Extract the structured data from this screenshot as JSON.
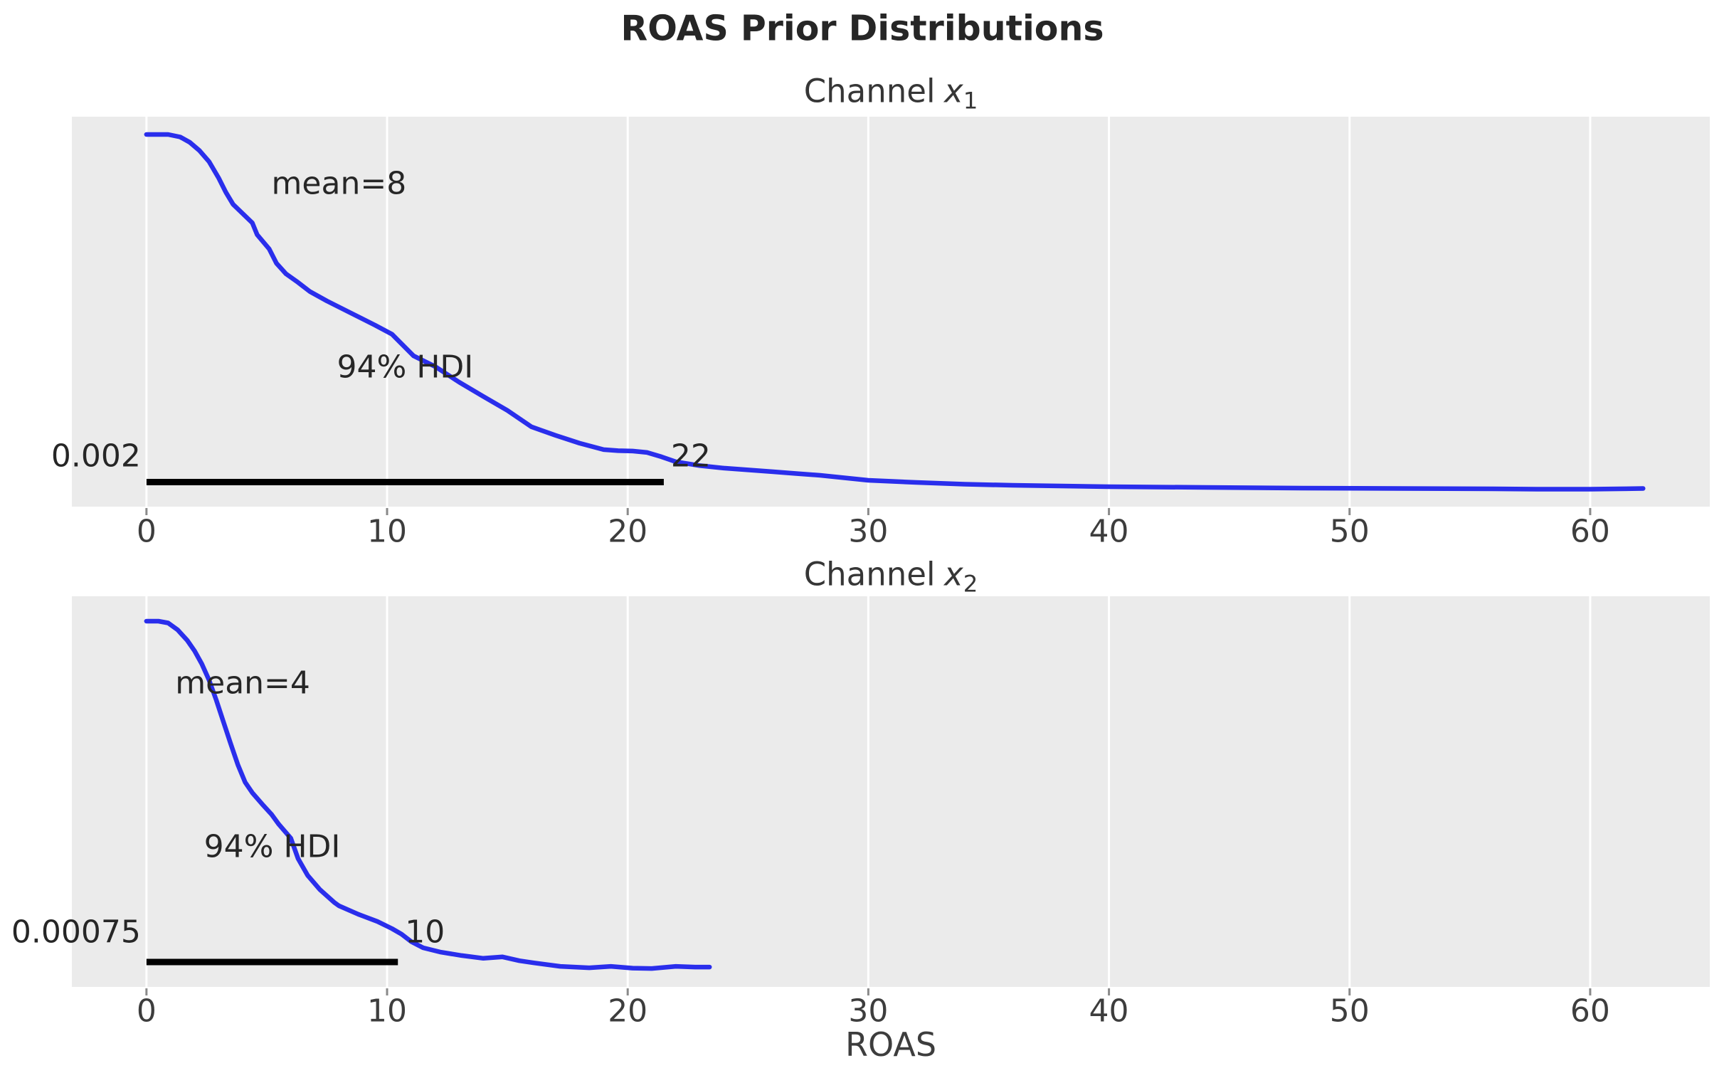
{
  "title": "ROAS Prior Distributions",
  "xlabel": "ROAS",
  "colors": {
    "figure_background": "#ffffff",
    "axes_background": "#ebebeb",
    "gridline": "#ffffff",
    "curve": "#2a2eec",
    "hdi_bar": "#000000",
    "title_text": "#262626",
    "axes_title_text": "#363636",
    "annotation_text": "#262626",
    "tick_text": "#3d3d3d",
    "tick_mark": "#8a8a8a"
  },
  "chart_data": {
    "type": "line",
    "kind": "kde-density-prior",
    "grid": "vertical-white-on-gray",
    "x_ticks": [
      0,
      10,
      20,
      30,
      40,
      50,
      60
    ],
    "x_axis_range": [
      -3.1,
      64.97
    ],
    "subplots": [
      {
        "title_word": "Channel",
        "var_letter": "x",
        "var_sub": "1",
        "mean_label": "mean=8",
        "mean": 8,
        "hdi_label": "94% HDI",
        "hdi_lower": 0.002,
        "hdi_upper": 21.5,
        "hdi_lower_label": "0.002",
        "hdi_upper_label": "22",
        "curve_x_end": 62.2,
        "curve": [
          [
            0,
            1.0
          ],
          [
            0.9,
            1.0
          ],
          [
            1.4,
            0.993
          ],
          [
            1.8,
            0.978
          ],
          [
            2.2,
            0.955
          ],
          [
            2.6,
            0.924
          ],
          [
            3.0,
            0.878
          ],
          [
            3.3,
            0.838
          ],
          [
            3.6,
            0.804
          ],
          [
            4.0,
            0.778
          ],
          [
            4.4,
            0.752
          ],
          [
            4.6,
            0.719
          ],
          [
            5.1,
            0.679
          ],
          [
            5.4,
            0.639
          ],
          [
            5.8,
            0.609
          ],
          [
            6.3,
            0.585
          ],
          [
            6.8,
            0.559
          ],
          [
            7.5,
            0.533
          ],
          [
            8.5,
            0.499
          ],
          [
            9.5,
            0.465
          ],
          [
            10.2,
            0.44
          ],
          [
            11.1,
            0.379
          ],
          [
            12,
            0.349
          ],
          [
            13,
            0.305
          ],
          [
            14,
            0.265
          ],
          [
            15,
            0.226
          ],
          [
            16,
            0.18
          ],
          [
            17,
            0.156
          ],
          [
            18,
            0.134
          ],
          [
            19,
            0.116
          ],
          [
            19.6,
            0.113
          ],
          [
            20.2,
            0.112
          ],
          [
            20.8,
            0.108
          ],
          [
            21.4,
            0.096
          ],
          [
            22,
            0.082
          ],
          [
            23,
            0.071
          ],
          [
            24,
            0.064
          ],
          [
            25,
            0.059
          ],
          [
            26,
            0.054
          ],
          [
            27,
            0.049
          ],
          [
            28,
            0.044
          ],
          [
            29,
            0.037
          ],
          [
            30,
            0.03
          ],
          [
            31,
            0.027
          ],
          [
            32,
            0.024
          ],
          [
            34,
            0.019
          ],
          [
            36,
            0.016
          ],
          [
            38,
            0.014
          ],
          [
            40,
            0.012
          ],
          [
            44,
            0.01
          ],
          [
            48,
            0.008
          ],
          [
            52,
            0.007
          ],
          [
            56,
            0.006
          ],
          [
            58,
            0.005
          ],
          [
            60,
            0.005
          ],
          [
            61.2,
            0.006
          ],
          [
            62.2,
            0.007
          ]
        ]
      },
      {
        "title_word": "Channel",
        "var_letter": "x",
        "var_sub": "2",
        "mean_label": "mean=4",
        "mean": 4,
        "hdi_label": "94% HDI",
        "hdi_lower": 0.00075,
        "hdi_upper": 10.45,
        "hdi_lower_label": "0.00075",
        "hdi_upper_label": "10",
        "curve_x_end": 23.4,
        "curve": [
          [
            0,
            1.0
          ],
          [
            0.5,
            1.0
          ],
          [
            0.9,
            0.995
          ],
          [
            1.3,
            0.975
          ],
          [
            1.7,
            0.945
          ],
          [
            2.0,
            0.915
          ],
          [
            2.3,
            0.878
          ],
          [
            2.6,
            0.832
          ],
          [
            2.9,
            0.775
          ],
          [
            3.2,
            0.712
          ],
          [
            3.5,
            0.65
          ],
          [
            3.8,
            0.59
          ],
          [
            4.1,
            0.54
          ],
          [
            4.4,
            0.51
          ],
          [
            4.8,
            0.478
          ],
          [
            5.2,
            0.448
          ],
          [
            5.5,
            0.42
          ],
          [
            6.0,
            0.38
          ],
          [
            6.3,
            0.322
          ],
          [
            6.7,
            0.274
          ],
          [
            7.2,
            0.234
          ],
          [
            7.8,
            0.197
          ],
          [
            8.0,
            0.187
          ],
          [
            8.8,
            0.163
          ],
          [
            9.6,
            0.142
          ],
          [
            10.2,
            0.122
          ],
          [
            10.6,
            0.106
          ],
          [
            11.0,
            0.085
          ],
          [
            11.5,
            0.067
          ],
          [
            12.2,
            0.055
          ],
          [
            13.1,
            0.045
          ],
          [
            14.0,
            0.037
          ],
          [
            14.8,
            0.041
          ],
          [
            15.5,
            0.03
          ],
          [
            16.1,
            0.024
          ],
          [
            17.2,
            0.014
          ],
          [
            18.4,
            0.01
          ],
          [
            19.3,
            0.014
          ],
          [
            20.2,
            0.009
          ],
          [
            21.0,
            0.008
          ],
          [
            22.0,
            0.014
          ],
          [
            22.8,
            0.012
          ],
          [
            23.4,
            0.012
          ]
        ]
      }
    ]
  }
}
